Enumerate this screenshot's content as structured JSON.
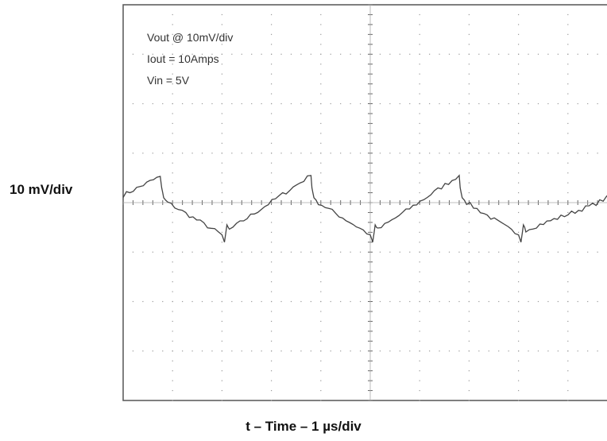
{
  "chart_data": {
    "type": "line",
    "title": "",
    "ylabel": "10 mV/div",
    "xlabel": "t – Time – 1 µs/div",
    "annotations": [
      "Vout @ 10mV/div",
      "Iout = 10Amps",
      "Vin = 5V"
    ],
    "x_divisions": 10,
    "y_divisions": 8,
    "xlim": [
      0,
      10
    ],
    "ylim": [
      -40,
      40
    ],
    "x_unit": "µs",
    "y_unit": "mV",
    "grid": true,
    "series": [
      {
        "values_x": [
          0,
          0.75,
          0.78,
          0.82,
          0.9,
          2.0,
          2.05,
          2.1,
          2.15,
          3.8,
          3.82,
          3.86,
          3.95,
          5.0,
          5.05,
          5.1,
          5.15,
          6.8,
          6.82,
          6.86,
          6.95,
          8.0,
          8.05,
          8.1,
          8.15,
          9.5,
          10.0
        ],
        "values_y": [
          1.5,
          5.3,
          3.0,
          1.0,
          0.0,
          -6.5,
          -8.0,
          -4.5,
          -5.5,
          5.5,
          3.0,
          1.0,
          0.0,
          -6.5,
          -8.0,
          -4.5,
          -5.5,
          5.5,
          3.0,
          1.0,
          0.0,
          -6.5,
          -8.0,
          -4.5,
          -5.5,
          -0.5,
          2.0
        ]
      }
    ]
  }
}
